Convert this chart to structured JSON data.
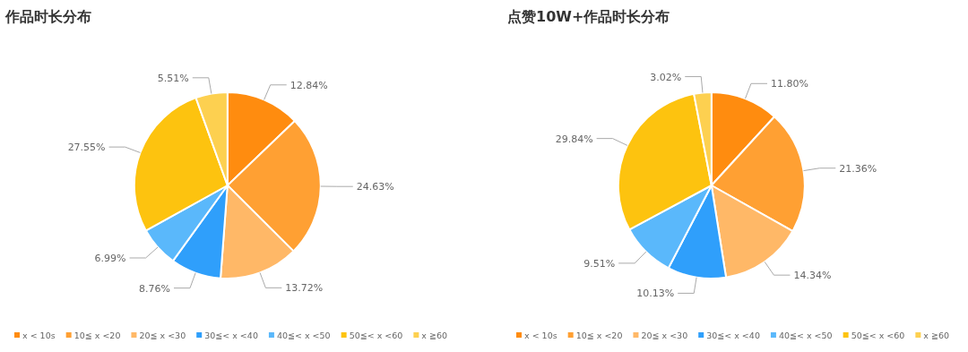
{
  "chart_data": [
    {
      "type": "pie",
      "title": "作品时长分布",
      "categories": [
        "x < 10s",
        "10≦ x <20",
        "20≦ x <30",
        "30≦< x <40",
        "40≦< x <50",
        "50≦< x <60",
        "x ≧60"
      ],
      "values": [
        12.84,
        24.63,
        13.72,
        8.76,
        6.99,
        27.55,
        5.51
      ],
      "value_labels": [
        "12.84%",
        "24.63%",
        "13.72%",
        "8.76%",
        "6.99%",
        "27.55%",
        "5.51%"
      ],
      "colors": [
        "#ff8c0f",
        "#ffa033",
        "#ffb867",
        "#2f9ffb",
        "#5ab8fb",
        "#fdc30f",
        "#fdd050"
      ],
      "legend": "bottom"
    },
    {
      "type": "pie",
      "title": "点赞10W+作品时长分布",
      "categories": [
        "x < 10s",
        "10≦ x <20",
        "20≦ x <30",
        "30≦< x <40",
        "40≦< x <50",
        "50≦< x <60",
        "x ≧60"
      ],
      "values": [
        11.8,
        21.36,
        14.34,
        10.13,
        9.51,
        29.84,
        3.02
      ],
      "value_labels": [
        "11.80%",
        "21.36%",
        "14.34%",
        "10.13%",
        "9.51%",
        "29.84%",
        "3.02%"
      ],
      "colors": [
        "#ff8c0f",
        "#ffa033",
        "#ffb867",
        "#2f9ffb",
        "#5ab8fb",
        "#fdc30f",
        "#fdd050"
      ],
      "legend": "bottom"
    }
  ]
}
